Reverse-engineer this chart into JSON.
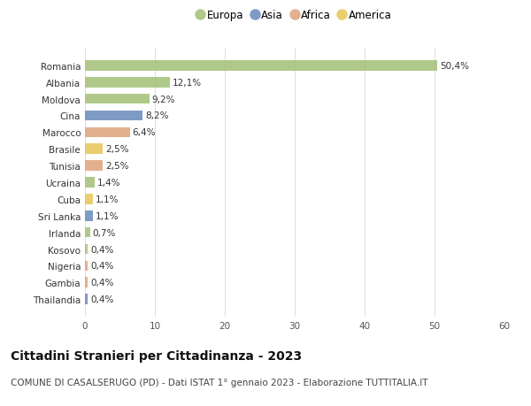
{
  "countries": [
    "Romania",
    "Albania",
    "Moldova",
    "Cina",
    "Marocco",
    "Brasile",
    "Tunisia",
    "Ucraina",
    "Cuba",
    "Sri Lanka",
    "Irlanda",
    "Kosovo",
    "Nigeria",
    "Gambia",
    "Thailandia"
  ],
  "values": [
    50.4,
    12.1,
    9.2,
    8.2,
    6.4,
    2.5,
    2.5,
    1.4,
    1.1,
    1.1,
    0.7,
    0.4,
    0.4,
    0.4,
    0.4
  ],
  "labels": [
    "50,4%",
    "12,1%",
    "9,2%",
    "8,2%",
    "6,4%",
    "2,5%",
    "2,5%",
    "1,4%",
    "1,1%",
    "1,1%",
    "0,7%",
    "0,4%",
    "0,4%",
    "0,4%",
    "0,4%"
  ],
  "continents": [
    "Europa",
    "Europa",
    "Europa",
    "Asia",
    "Africa",
    "America",
    "Africa",
    "Europa",
    "America",
    "Asia",
    "Europa",
    "Europa",
    "Africa",
    "Africa",
    "Asia"
  ],
  "continent_colors": {
    "Europa": "#a8c47e",
    "Asia": "#7090c0",
    "Africa": "#e0a882",
    "America": "#e8c860"
  },
  "legend_order": [
    "Europa",
    "Asia",
    "Africa",
    "America"
  ],
  "title": "Cittadini Stranieri per Cittadinanza - 2023",
  "subtitle": "COMUNE DI CASALSERUGO (PD) - Dati ISTAT 1° gennaio 2023 - Elaborazione TUTTITALIA.IT",
  "xlim": [
    0,
    60
  ],
  "xticks": [
    0,
    10,
    20,
    30,
    40,
    50,
    60
  ],
  "background_color": "#ffffff",
  "grid_color": "#e0e0e0",
  "bar_height": 0.62,
  "label_fontsize": 7.5,
  "tick_fontsize": 7.5,
  "title_fontsize": 10,
  "subtitle_fontsize": 7.5
}
